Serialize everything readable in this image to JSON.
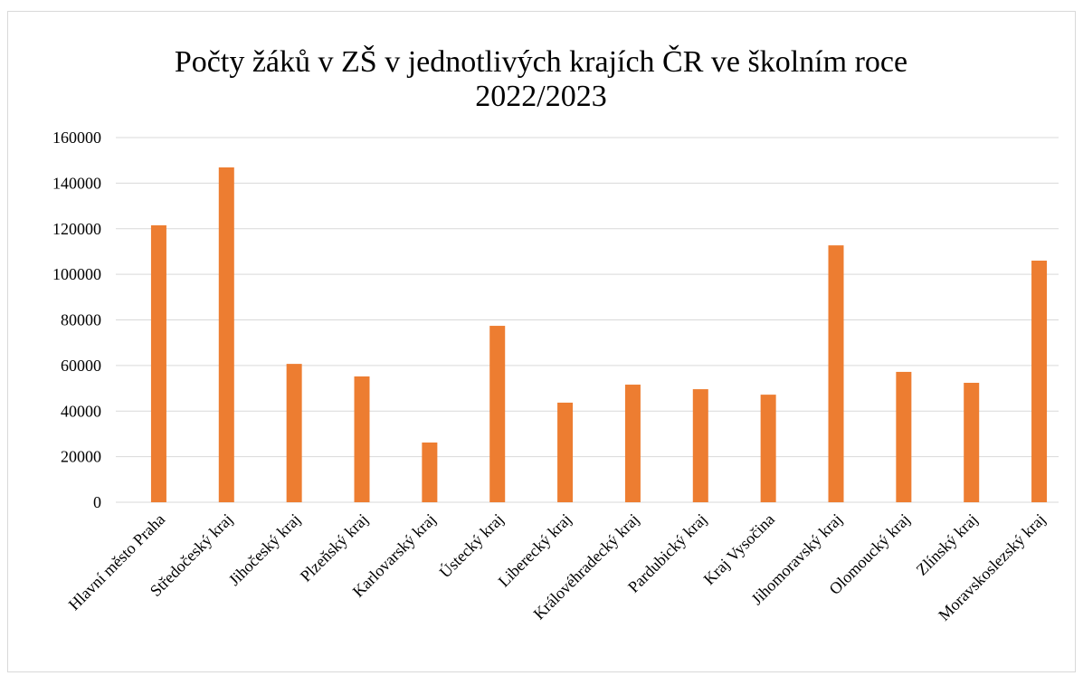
{
  "chart_data": {
    "type": "bar",
    "title": "Počty žáků v ZŠ v jednotlivých krajích ČR ve školním roce 2022/2023",
    "categories": [
      "Hlavní město Praha",
      "Středočeský kraj",
      "Jihočeský kraj",
      "Plzeňský kraj",
      "Karlovarský kraj",
      "Ústecký kraj",
      "Liberecký kraj",
      "Královéhradecký kraj",
      "Pardubický kraj",
      "Kraj Vysočina",
      "Jihomoravský kraj",
      "Olomoucký kraj",
      "Zlínský kraj",
      "Moravskoslezský kraj"
    ],
    "values": [
      121500,
      146900,
      60700,
      55200,
      26200,
      77400,
      43700,
      51600,
      49600,
      47200,
      112700,
      57200,
      52400,
      106000
    ],
    "color": "#ed7d31",
    "ylim": [
      0,
      160000
    ],
    "yticks": [
      0,
      20000,
      40000,
      60000,
      80000,
      100000,
      120000,
      140000,
      160000
    ],
    "grid": true
  }
}
